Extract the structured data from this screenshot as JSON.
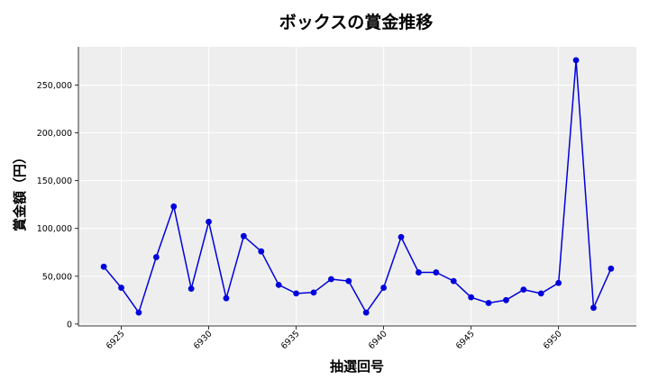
{
  "chart_data": {
    "type": "line",
    "title": "ボックスの賞金推移",
    "xlabel": "抽選回号",
    "ylabel": "賞金額（円）",
    "x": [
      6924,
      6925,
      6926,
      6927,
      6928,
      6929,
      6930,
      6931,
      6932,
      6933,
      6934,
      6935,
      6936,
      6937,
      6938,
      6939,
      6940,
      6941,
      6942,
      6943,
      6944,
      6945,
      6946,
      6947,
      6948,
      6949,
      6950,
      6951,
      6952,
      6953
    ],
    "values": [
      60000,
      38000,
      12000,
      70000,
      123000,
      37000,
      107000,
      27000,
      92000,
      76000,
      41000,
      32000,
      33000,
      47000,
      45000,
      12000,
      38000,
      91000,
      54000,
      54000,
      45000,
      28000,
      22000,
      25000,
      36000,
      32000,
      43000,
      276000,
      17000,
      58000
    ],
    "xticks": [
      6925,
      6930,
      6935,
      6940,
      6945,
      6950
    ],
    "xtick_labels": [
      "6925",
      "6930",
      "6935",
      "6940",
      "6945",
      "6950"
    ],
    "yticks": [
      0,
      50000,
      100000,
      150000,
      200000,
      250000
    ],
    "ytick_labels": [
      "0",
      "50,000",
      "100,000",
      "150,000",
      "200,000",
      "250,000"
    ],
    "xlim": [
      6922.55,
      6954.45
    ],
    "ylim": [
      -2000,
      290000
    ],
    "grid": true,
    "colors": {
      "line": "#0000dd",
      "marker": "#0000dd",
      "plot_bg": "#eeeeee",
      "grid": "#ffffff"
    }
  }
}
